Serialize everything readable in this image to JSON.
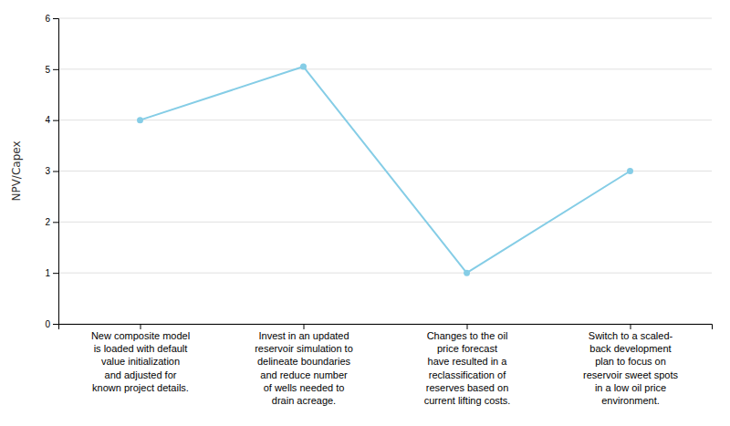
{
  "chart_data": {
    "type": "line",
    "y_label": "NPV/Capex",
    "categories": [
      "New composite model\nis loaded with default\nvalue initialization\nand adjusted for\nknown project details.",
      "Invest in an updated\nreservoir simulation to\ndelineate boundaries\nand reduce number\nof wells needed to\ndrain acreage.",
      "Changes to the oil\nprice forecast\nhave resulted in a\nreclassification of\nreserves based on\ncurrent lifting costs.",
      "Switch to a scaled-\nback development\nplan to focus on\nreservoir sweet spots\nin a low oil price\nenvironment."
    ],
    "values": [
      4,
      5.05,
      1.0,
      3.0
    ],
    "color": "#85CDE6",
    "marker": "circle",
    "ylim": [
      0,
      6
    ],
    "yticks": [
      0,
      1,
      2,
      3,
      4,
      5,
      6
    ],
    "grid": true
  }
}
